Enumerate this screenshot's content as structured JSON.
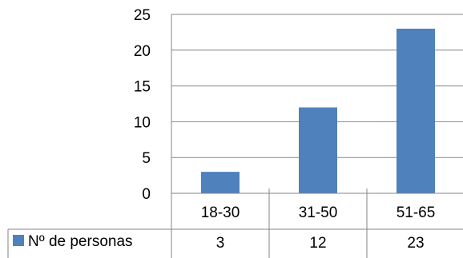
{
  "chart_data": {
    "type": "bar",
    "categories": [
      "18-30",
      "31-50",
      "51-65"
    ],
    "series": [
      {
        "name": "Nº de personas",
        "values": [
          3,
          12,
          23
        ],
        "color": "#4f81bd"
      }
    ],
    "ylim": [
      0,
      25
    ],
    "yticks": [
      0,
      5,
      10,
      15,
      20,
      25
    ],
    "grid": true,
    "legend": "left-of-data-table",
    "data_table": true
  }
}
